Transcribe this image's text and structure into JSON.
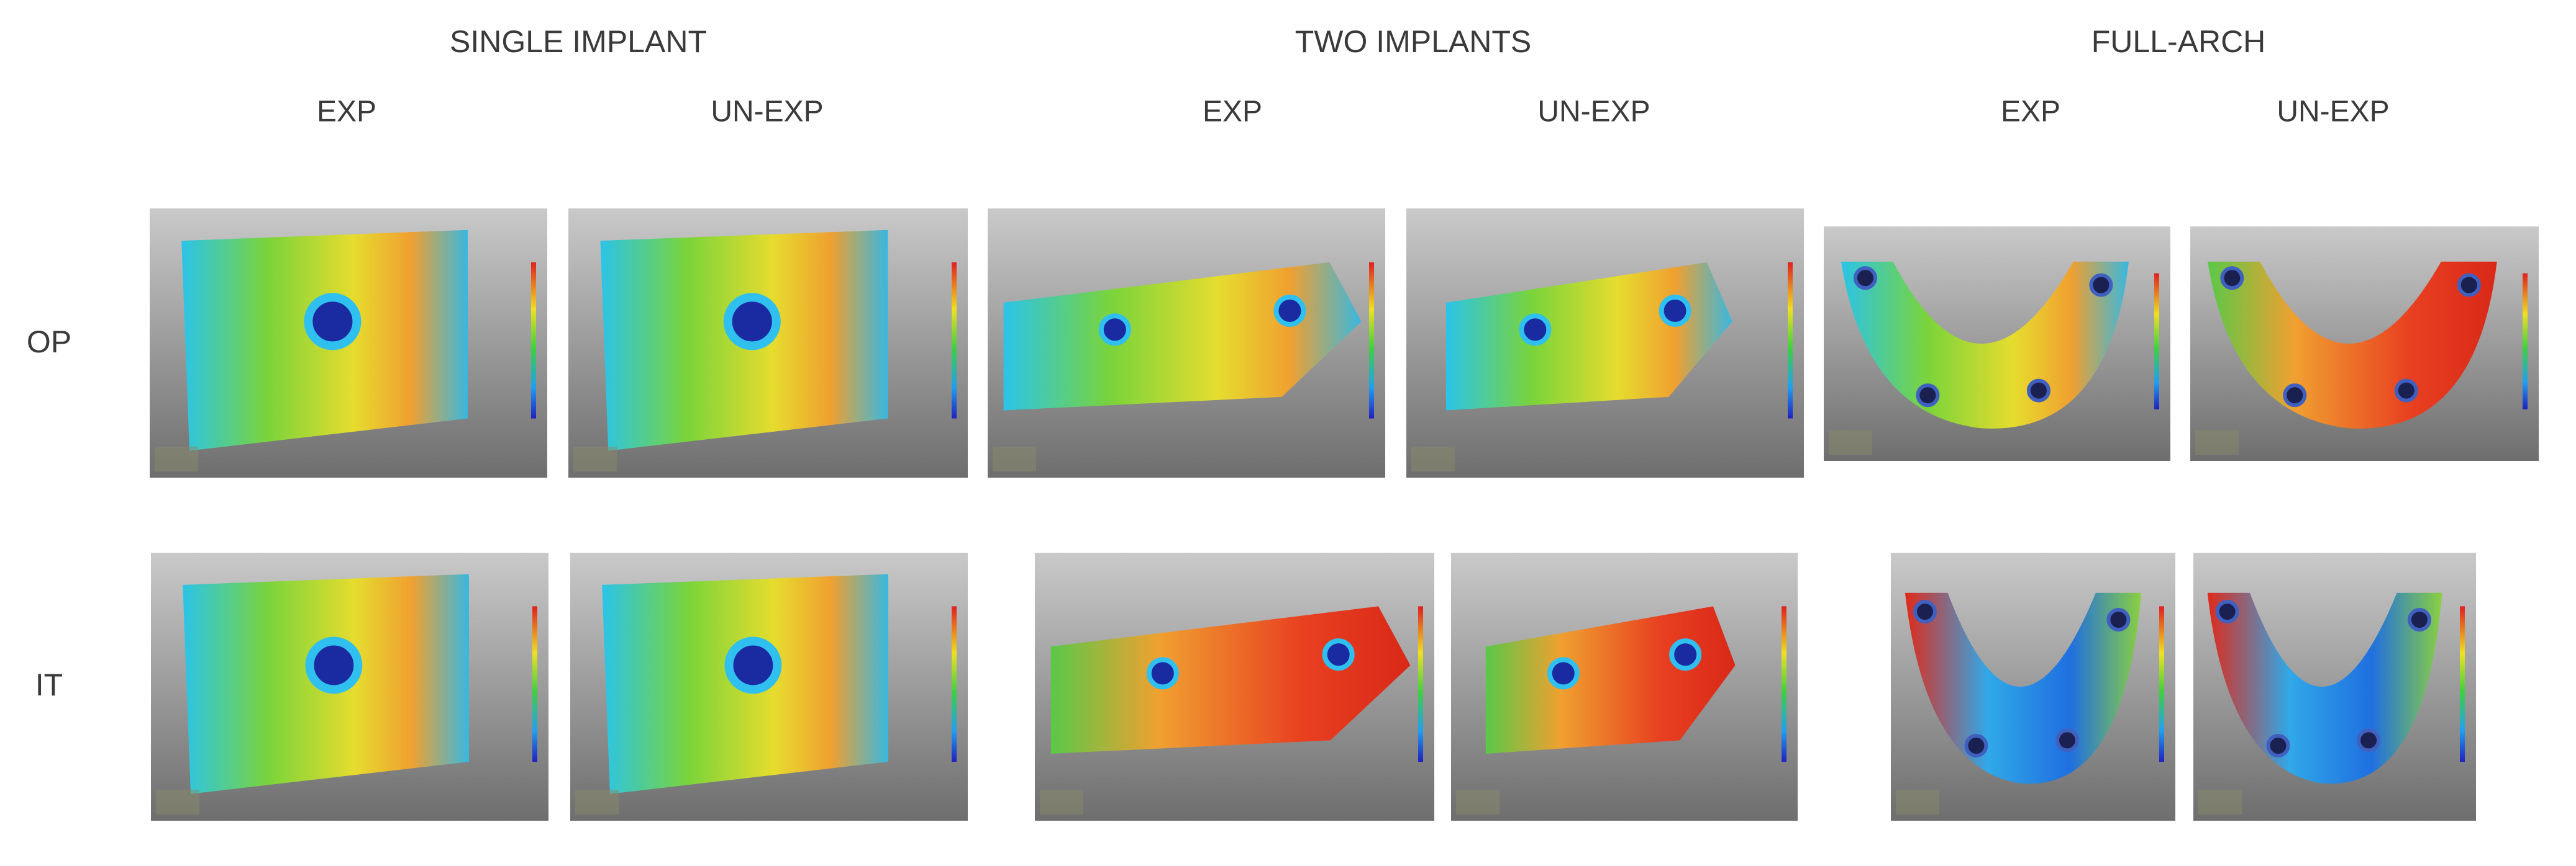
{
  "groups": [
    {
      "title": "SINGLE IMPLANT",
      "columns": [
        "EXP",
        "UN-EXP"
      ]
    },
    {
      "title": "TWO IMPLANTS",
      "columns": [
        "EXP",
        "UN-EXP"
      ]
    },
    {
      "title": "FULL-ARCH",
      "columns": [
        "EXP",
        "UN-EXP"
      ]
    }
  ],
  "rows": [
    "OP",
    "IT"
  ]
}
